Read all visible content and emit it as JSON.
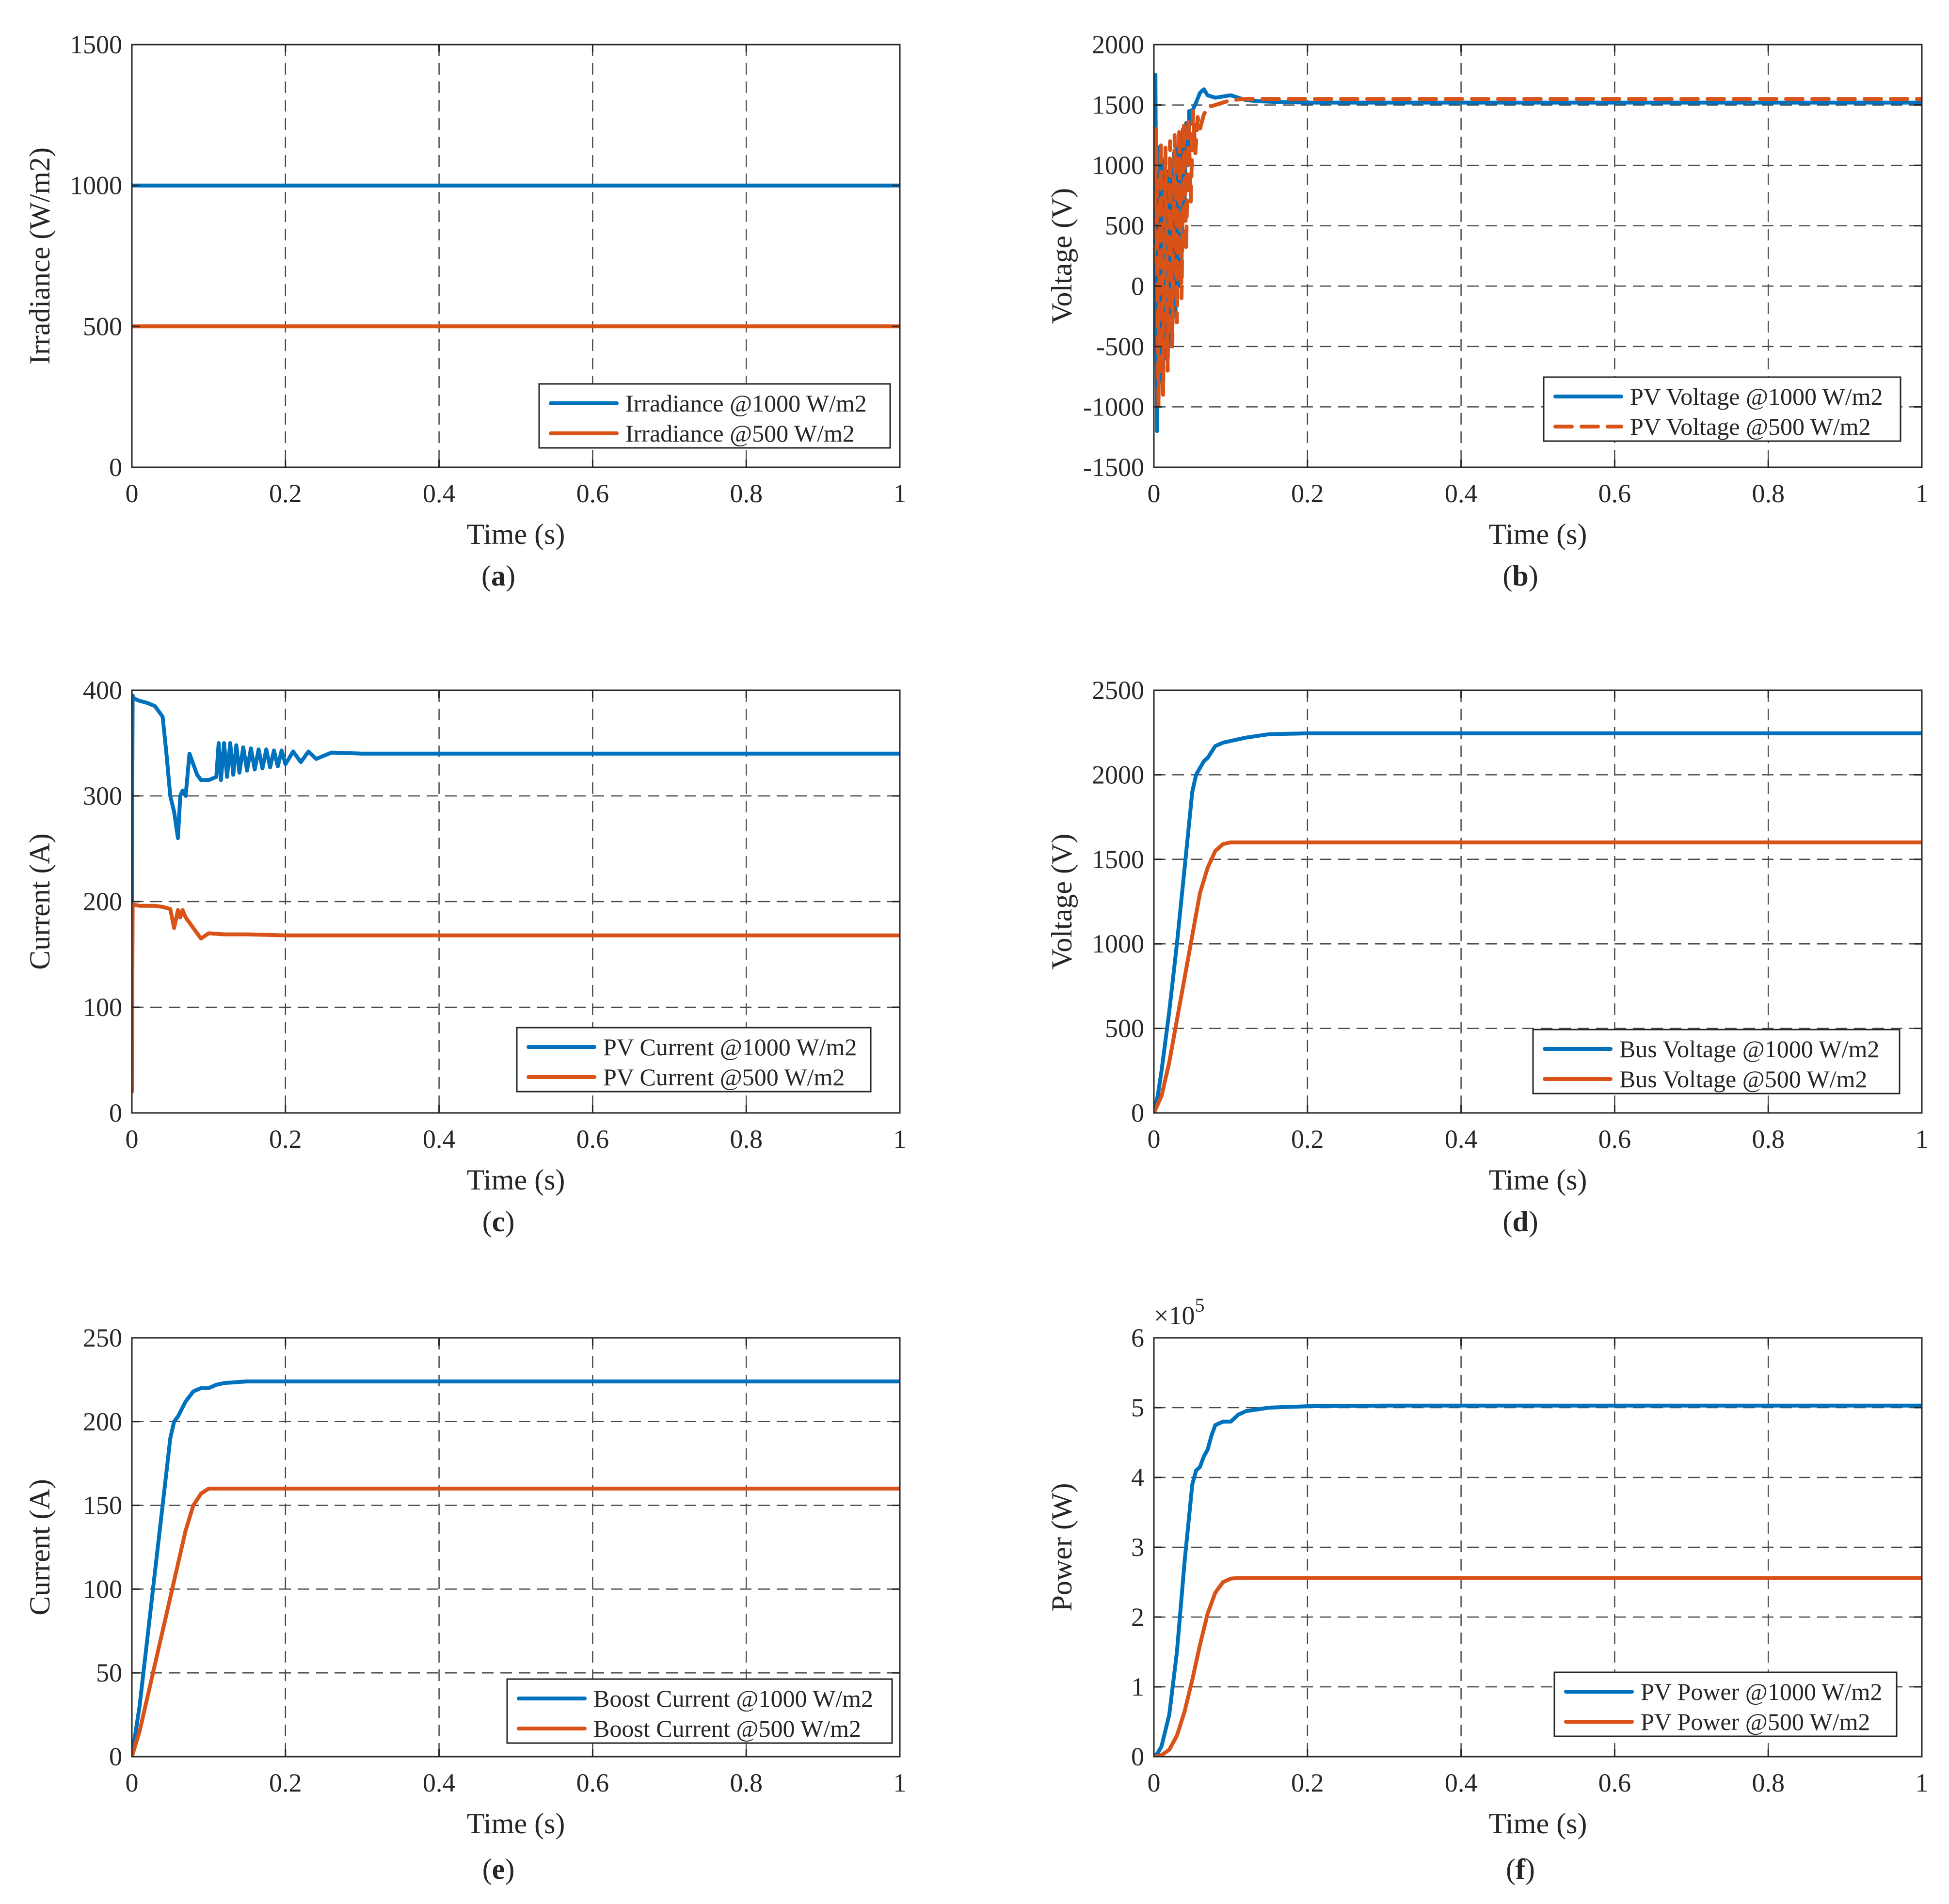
{
  "colors": {
    "blue": "#0072BD",
    "orange": "#D95319"
  },
  "chart_data": [
    {
      "type": "line",
      "caption_letter": "a",
      "xlabel": "Time (s)",
      "ylabel": "Irradiance (W/m2)",
      "xlim": [
        0,
        1
      ],
      "ylim": [
        0,
        1500
      ],
      "xticks": [
        0,
        0.2,
        0.4,
        0.6,
        0.8,
        1
      ],
      "yticks": [
        0,
        500,
        1000,
        1500
      ],
      "xtick_labels": [
        "0",
        "0.2",
        "0.4",
        "0.6",
        "0.8",
        "1"
      ],
      "ytick_labels": [
        "0",
        "500",
        "1000",
        "1500"
      ],
      "legend_position": "bottom-right",
      "series": [
        {
          "name": "Irradiance @1000 W/m2",
          "color": "blue",
          "style": "solid",
          "x": [
            0,
            1
          ],
          "y": [
            1000,
            1000
          ]
        },
        {
          "name": "Irradiance @500 W/m2",
          "color": "orange",
          "style": "solid",
          "x": [
            0,
            1
          ],
          "y": [
            500,
            500
          ]
        }
      ]
    },
    {
      "type": "line",
      "caption_letter": "b",
      "xlabel": "Time (s)",
      "ylabel": "Voltage (V)",
      "xlim": [
        0,
        1
      ],
      "ylim": [
        -1500,
        2000
      ],
      "xticks": [
        0,
        0.2,
        0.4,
        0.6,
        0.8,
        1
      ],
      "yticks": [
        -1500,
        -1000,
        -500,
        0,
        500,
        1000,
        1500,
        2000
      ],
      "xtick_labels": [
        "0",
        "0.2",
        "0.4",
        "0.6",
        "0.8",
        "1"
      ],
      "ytick_labels": [
        "-1500",
        "-1000",
        "-500",
        "0",
        "500",
        "1000",
        "1500",
        "2000"
      ],
      "legend_position": "bottom-right",
      "series": [
        {
          "name": "PV Voltage @1000 W/m2",
          "color": "blue",
          "style": "solid",
          "x": [
            0,
            0.002,
            0.004,
            0.006,
            0.008,
            0.01,
            0.012,
            0.014,
            0.016,
            0.018,
            0.02,
            0.022,
            0.024,
            0.026,
            0.028,
            0.03,
            0.032,
            0.034,
            0.036,
            0.038,
            0.04,
            0.042,
            0.044,
            0.046,
            0.05,
            0.055,
            0.06,
            0.065,
            0.07,
            0.08,
            0.09,
            0.1,
            0.11,
            0.12,
            0.14,
            0.16,
            0.2,
            0.3,
            0.4,
            0.5,
            0.6,
            0.7,
            0.8,
            0.9,
            1.0
          ],
          "y": [
            1200,
            1750,
            -1200,
            1150,
            -800,
            1050,
            -700,
            1000,
            -600,
            950,
            -500,
            1000,
            -300,
            1100,
            -250,
            1150,
            0,
            1200,
            200,
            1300,
            700,
            1350,
            1000,
            1450,
            1450,
            1520,
            1600,
            1630,
            1580,
            1560,
            1570,
            1580,
            1560,
            1540,
            1530,
            1525,
            1520,
            1520,
            1520,
            1520,
            1520,
            1520,
            1520,
            1520,
            1520
          ]
        },
        {
          "name": "PV Voltage @500 W/m2",
          "color": "orange",
          "style": "dashed",
          "x": [
            0,
            0.003,
            0.006,
            0.009,
            0.012,
            0.015,
            0.018,
            0.021,
            0.024,
            0.027,
            0.03,
            0.033,
            0.036,
            0.039,
            0.042,
            0.045,
            0.048,
            0.051,
            0.054,
            0.057,
            0.06,
            0.065,
            0.07,
            0.08,
            0.09,
            0.1,
            0.12,
            0.15,
            0.2,
            0.3,
            0.4,
            0.5,
            0.6,
            0.7,
            0.8,
            0.9,
            1.0
          ],
          "y": [
            200,
            1300,
            -1000,
            1200,
            -900,
            1150,
            -700,
            1200,
            -500,
            1250,
            -300,
            1300,
            -100,
            1350,
            300,
            1400,
            700,
            1450,
            1100,
            1400,
            1300,
            1420,
            1480,
            1500,
            1520,
            1540,
            1550,
            1550,
            1550,
            1550,
            1550,
            1550,
            1550,
            1550,
            1550,
            1550,
            1550
          ]
        }
      ]
    },
    {
      "type": "line",
      "caption_letter": "c",
      "xlabel": "Time (s)",
      "ylabel": "Current (A)",
      "xlim": [
        0,
        1
      ],
      "ylim": [
        0,
        400
      ],
      "xticks": [
        0,
        0.2,
        0.4,
        0.6,
        0.8,
        1
      ],
      "yticks": [
        0,
        100,
        200,
        300,
        400
      ],
      "xtick_labels": [
        "0",
        "0.2",
        "0.4",
        "0.6",
        "0.8",
        "1"
      ],
      "ytick_labels": [
        "0",
        "100",
        "200",
        "300",
        "400"
      ],
      "legend_position": "bottom-right",
      "series": [
        {
          "name": "PV Current @1000 W/m2",
          "color": "blue",
          "style": "solid",
          "x": [
            0,
            0.001,
            0.003,
            0.01,
            0.02,
            0.03,
            0.04,
            0.045,
            0.05,
            0.055,
            0.06,
            0.063,
            0.066,
            0.07,
            0.075,
            0.08,
            0.085,
            0.09,
            0.1,
            0.11,
            0.113,
            0.116,
            0.12,
            0.124,
            0.128,
            0.132,
            0.136,
            0.14,
            0.145,
            0.15,
            0.155,
            0.16,
            0.165,
            0.17,
            0.175,
            0.18,
            0.185,
            0.19,
            0.195,
            0.2,
            0.21,
            0.22,
            0.23,
            0.24,
            0.26,
            0.3,
            0.4,
            0.5,
            0.6,
            0.7,
            0.8,
            0.9,
            1.0
          ],
          "y": [
            200,
            395,
            392,
            390,
            388,
            385,
            375,
            340,
            300,
            285,
            260,
            300,
            305,
            300,
            340,
            330,
            320,
            315,
            315,
            318,
            350,
            315,
            350,
            318,
            350,
            320,
            348,
            322,
            346,
            324,
            345,
            325,
            344,
            326,
            344,
            327,
            343,
            328,
            343,
            330,
            342,
            332,
            342,
            335,
            341,
            340,
            340,
            340,
            340,
            340,
            340,
            340,
            340
          ]
        },
        {
          "name": "PV Current @500 W/m2",
          "color": "orange",
          "style": "solid",
          "x": [
            0,
            0.001,
            0.003,
            0.01,
            0.02,
            0.03,
            0.04,
            0.05,
            0.055,
            0.06,
            0.063,
            0.066,
            0.07,
            0.075,
            0.08,
            0.085,
            0.09,
            0.1,
            0.12,
            0.15,
            0.2,
            0.3,
            0.4,
            0.5,
            0.6,
            0.7,
            0.8,
            0.9,
            1.0
          ],
          "y": [
            20,
            197,
            197,
            196,
            196,
            196,
            195,
            193,
            175,
            192,
            185,
            192,
            185,
            180,
            175,
            170,
            165,
            170,
            169,
            169,
            168,
            168,
            168,
            168,
            168,
            168,
            168,
            168,
            168
          ]
        }
      ]
    },
    {
      "type": "line",
      "caption_letter": "d",
      "xlabel": "Time (s)",
      "ylabel": "Voltage (V)",
      "xlim": [
        0,
        1
      ],
      "ylim": [
        0,
        2500
      ],
      "xticks": [
        0,
        0.2,
        0.4,
        0.6,
        0.8,
        1
      ],
      "yticks": [
        0,
        500,
        1000,
        1500,
        2000,
        2500
      ],
      "xtick_labels": [
        "0",
        "0.2",
        "0.4",
        "0.6",
        "0.8",
        "1"
      ],
      "ytick_labels": [
        "0",
        "500",
        "1000",
        "1500",
        "2000",
        "2500"
      ],
      "legend_position": "bottom-right",
      "series": [
        {
          "name": "Bus Voltage @1000 W/m2",
          "color": "blue",
          "style": "solid",
          "x": [
            0,
            0.005,
            0.01,
            0.02,
            0.03,
            0.04,
            0.05,
            0.055,
            0.06,
            0.065,
            0.07,
            0.08,
            0.09,
            0.1,
            0.12,
            0.15,
            0.2,
            0.3,
            0.4,
            0.5,
            0.6,
            0.7,
            0.8,
            0.9,
            1.0
          ],
          "y": [
            0,
            100,
            250,
            600,
            1000,
            1450,
            1900,
            2000,
            2040,
            2080,
            2100,
            2170,
            2190,
            2200,
            2220,
            2240,
            2245,
            2245,
            2245,
            2245,
            2245,
            2245,
            2245,
            2245,
            2245
          ]
        },
        {
          "name": "Bus Voltage @500 W/m2",
          "color": "orange",
          "style": "solid",
          "x": [
            0,
            0.01,
            0.02,
            0.03,
            0.04,
            0.05,
            0.06,
            0.07,
            0.08,
            0.09,
            0.1,
            0.12,
            0.15,
            0.2,
            0.3,
            0.4,
            0.5,
            0.6,
            0.7,
            0.8,
            0.9,
            1.0
          ],
          "y": [
            0,
            100,
            300,
            550,
            800,
            1050,
            1300,
            1450,
            1550,
            1590,
            1600,
            1600,
            1600,
            1600,
            1600,
            1600,
            1600,
            1600,
            1600,
            1600,
            1600,
            1600
          ]
        }
      ]
    },
    {
      "type": "line",
      "caption_letter": "e",
      "xlabel": "Time (s)",
      "ylabel": "Current (A)",
      "xlim": [
        0,
        1
      ],
      "ylim": [
        0,
        250
      ],
      "xticks": [
        0,
        0.2,
        0.4,
        0.6,
        0.8,
        1
      ],
      "yticks": [
        0,
        50,
        100,
        150,
        200,
        250
      ],
      "xtick_labels": [
        "0",
        "0.2",
        "0.4",
        "0.6",
        "0.8",
        "1"
      ],
      "ytick_labels": [
        "0",
        "50",
        "100",
        "150",
        "200",
        "250"
      ],
      "legend_position": "bottom-right",
      "series": [
        {
          "name": "Boost Current @1000 W/m2",
          "color": "blue",
          "style": "solid",
          "x": [
            0,
            0.01,
            0.02,
            0.03,
            0.04,
            0.05,
            0.055,
            0.06,
            0.07,
            0.08,
            0.09,
            0.1,
            0.11,
            0.12,
            0.15,
            0.2,
            0.3,
            0.4,
            0.5,
            0.6,
            0.7,
            0.8,
            0.9,
            1.0
          ],
          "y": [
            0,
            30,
            70,
            110,
            150,
            190,
            200,
            203,
            212,
            218,
            220,
            220,
            222,
            223,
            224,
            224,
            224,
            224,
            224,
            224,
            224,
            224,
            224,
            224
          ]
        },
        {
          "name": "Boost Current @500 W/m2",
          "color": "orange",
          "style": "solid",
          "x": [
            0,
            0.01,
            0.02,
            0.03,
            0.04,
            0.05,
            0.06,
            0.07,
            0.08,
            0.09,
            0.1,
            0.12,
            0.15,
            0.2,
            0.3,
            0.4,
            0.5,
            0.6,
            0.7,
            0.8,
            0.9,
            1.0
          ],
          "y": [
            0,
            15,
            35,
            55,
            75,
            95,
            115,
            135,
            150,
            157,
            160,
            160,
            160,
            160,
            160,
            160,
            160,
            160,
            160,
            160,
            160,
            160
          ]
        }
      ]
    },
    {
      "type": "line",
      "caption_letter": "f",
      "xlabel": "Time (s)",
      "ylabel": "Power (W)",
      "exponent_label": "×10",
      "exponent_power": "5",
      "xlim": [
        0,
        1
      ],
      "ylim": [
        0,
        6
      ],
      "xticks": [
        0,
        0.2,
        0.4,
        0.6,
        0.8,
        1
      ],
      "yticks": [
        0,
        1,
        2,
        3,
        4,
        5,
        6
      ],
      "xtick_labels": [
        "0",
        "0.2",
        "0.4",
        "0.6",
        "0.8",
        "1"
      ],
      "ytick_labels": [
        "0",
        "1",
        "2",
        "3",
        "4",
        "5",
        "6"
      ],
      "legend_position": "bottom-right",
      "series": [
        {
          "name": "PV Power @1000 W/m2",
          "color": "blue",
          "style": "solid",
          "x": [
            0,
            0.005,
            0.01,
            0.02,
            0.03,
            0.04,
            0.05,
            0.055,
            0.06,
            0.065,
            0.07,
            0.075,
            0.08,
            0.09,
            0.1,
            0.11,
            0.12,
            0.15,
            0.2,
            0.3,
            0.4,
            0.5,
            0.6,
            0.7,
            0.8,
            0.9,
            1.0
          ],
          "y": [
            0,
            0.05,
            0.15,
            0.6,
            1.5,
            2.8,
            3.9,
            4.1,
            4.15,
            4.3,
            4.4,
            4.6,
            4.75,
            4.8,
            4.8,
            4.9,
            4.95,
            5.0,
            5.02,
            5.03,
            5.03,
            5.03,
            5.03,
            5.03,
            5.03,
            5.03,
            5.03
          ]
        },
        {
          "name": "PV Power @500 W/m2",
          "color": "orange",
          "style": "solid",
          "x": [
            0,
            0.01,
            0.02,
            0.03,
            0.04,
            0.05,
            0.06,
            0.07,
            0.08,
            0.09,
            0.1,
            0.11,
            0.12,
            0.15,
            0.2,
            0.3,
            0.4,
            0.5,
            0.6,
            0.7,
            0.8,
            0.9,
            1.0
          ],
          "y": [
            0,
            0.02,
            0.1,
            0.3,
            0.65,
            1.1,
            1.6,
            2.05,
            2.35,
            2.5,
            2.55,
            2.56,
            2.56,
            2.56,
            2.56,
            2.56,
            2.56,
            2.56,
            2.56,
            2.56,
            2.56,
            2.56,
            2.56
          ]
        }
      ]
    }
  ]
}
